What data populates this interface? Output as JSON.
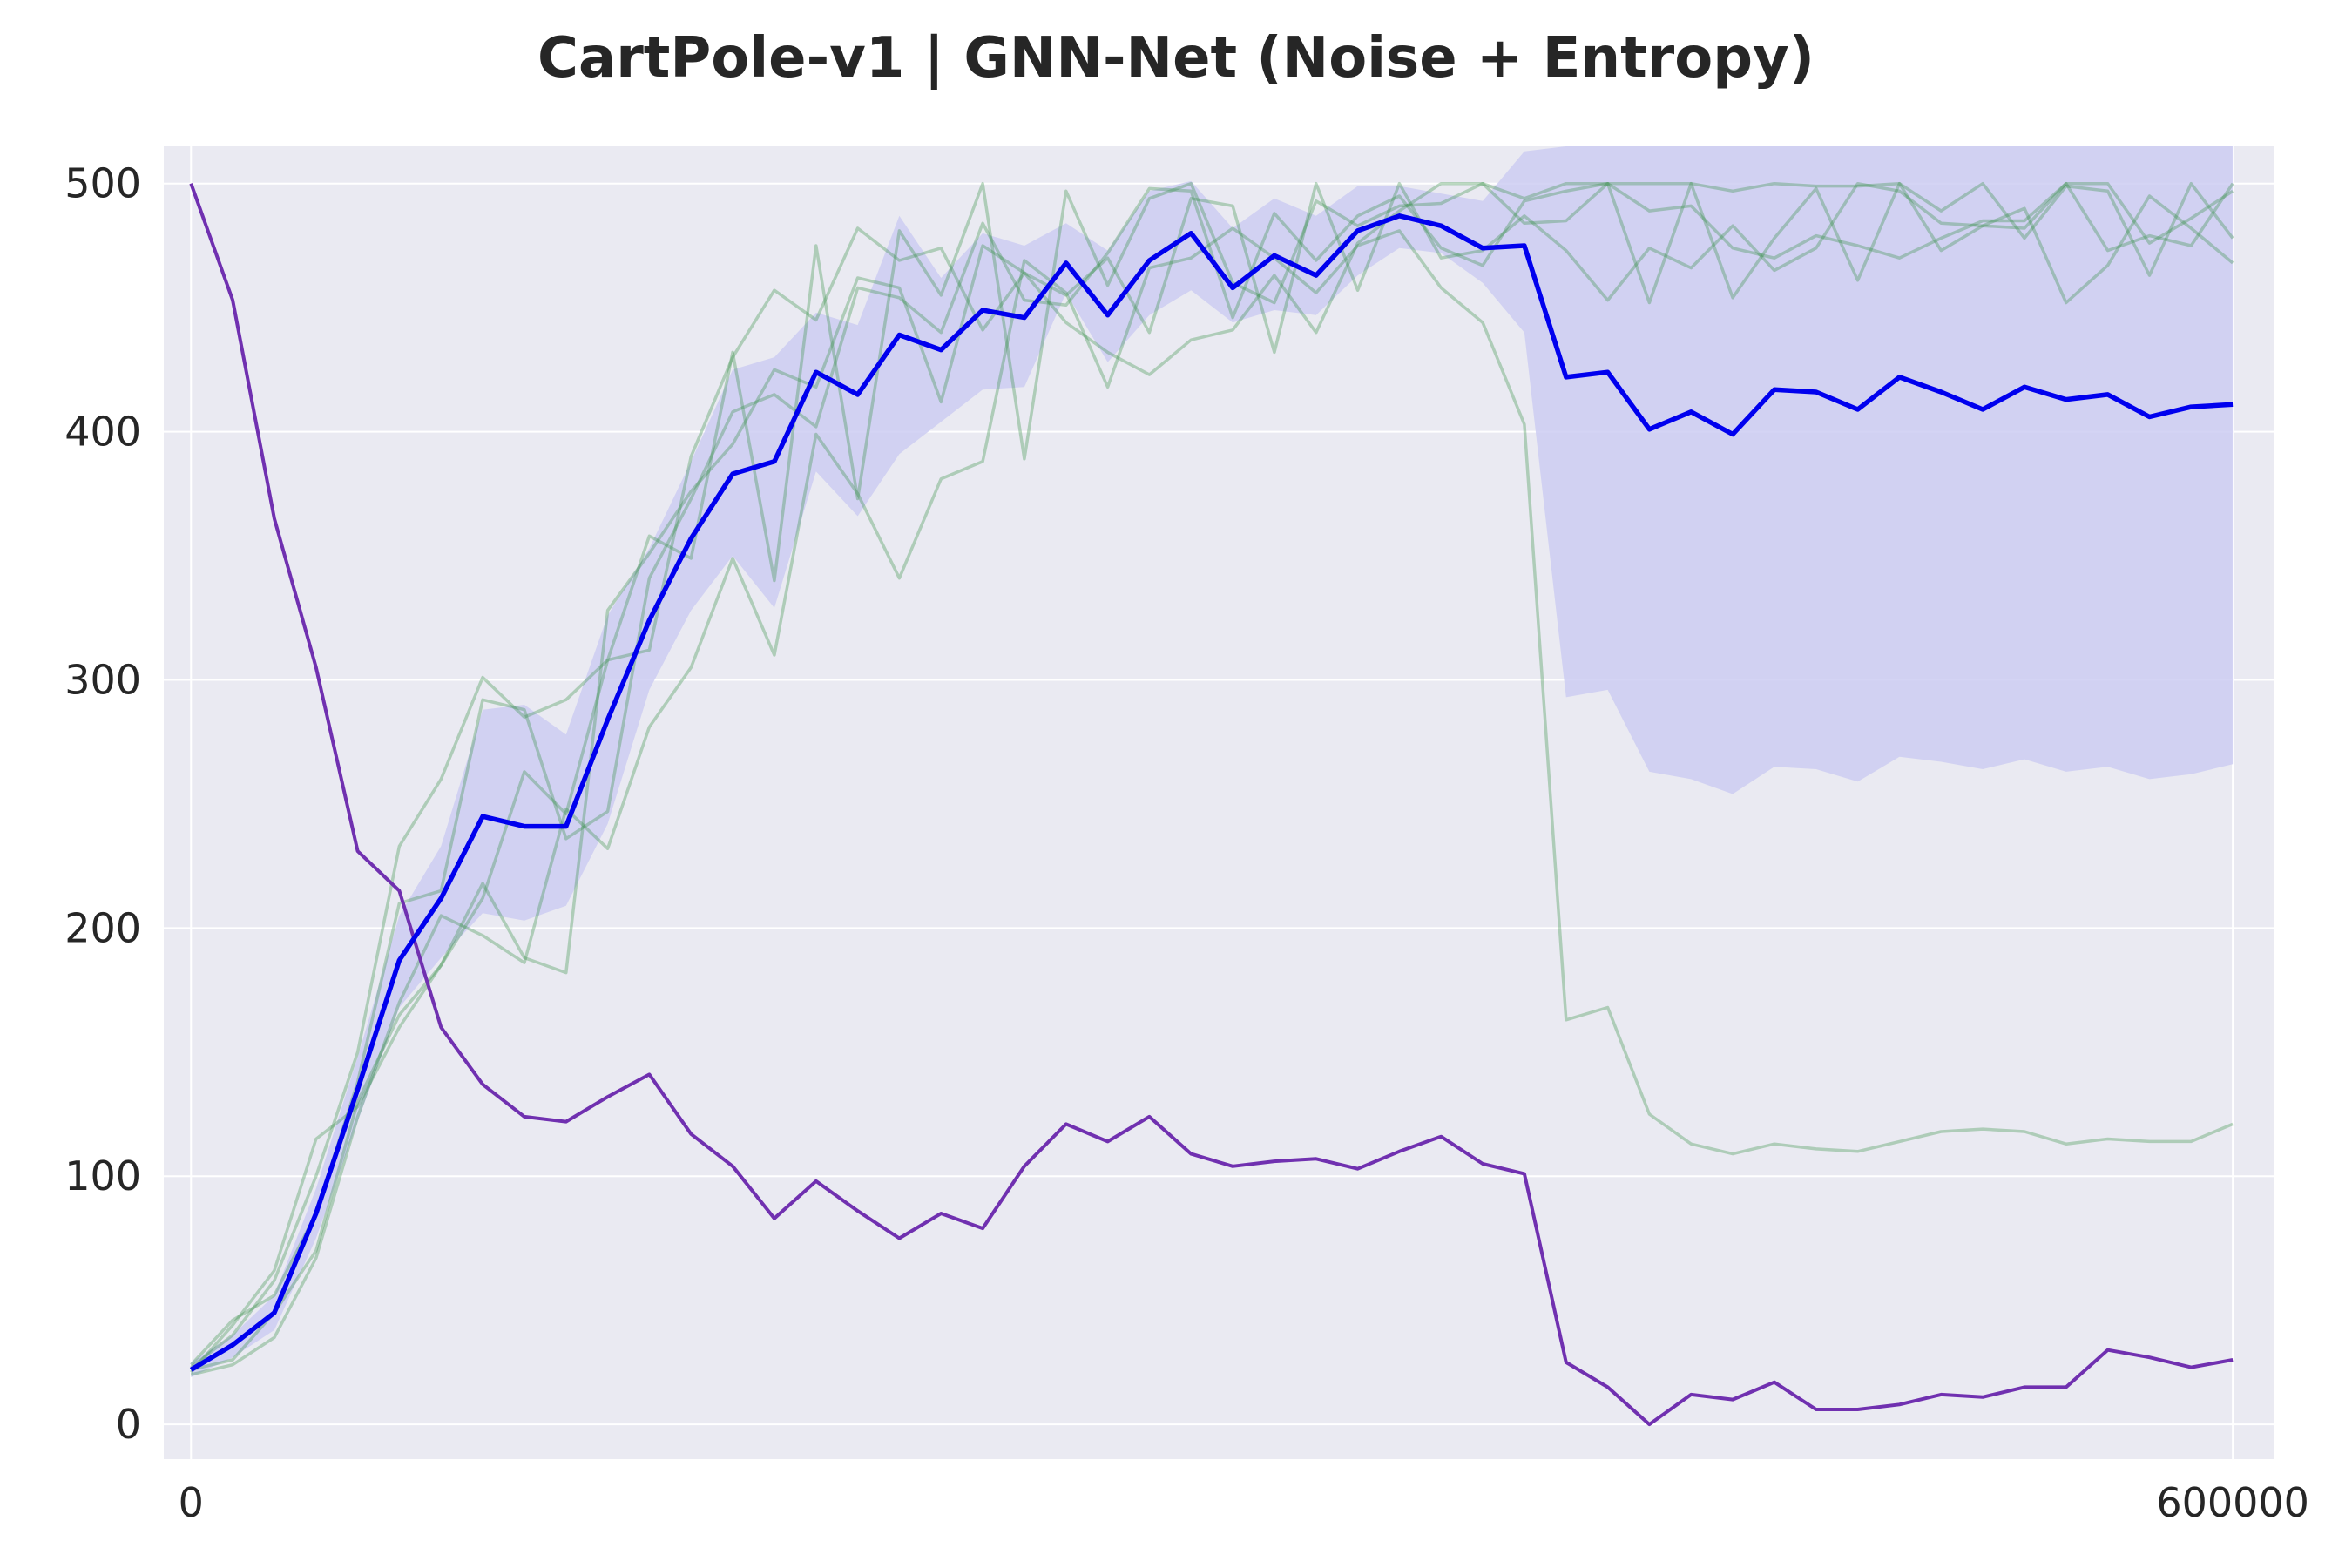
{
  "chart_data": {
    "type": "line",
    "title": "CartPole-v1 | GNN-Net (Noise + Entropy)",
    "xlabel": "",
    "ylabel": "",
    "xlim": [
      -8000,
      612000
    ],
    "ylim": [
      -14,
      515
    ],
    "grid": true,
    "x_ticks": [
      0,
      600000
    ],
    "x_tick_labels": [
      "0",
      "600000"
    ],
    "y_ticks": [
      0,
      100,
      200,
      300,
      400,
      500
    ],
    "y_tick_labels": [
      "0",
      "100",
      "200",
      "300",
      "400",
      "500"
    ],
    "x": [
      0,
      12245,
      24490,
      36735,
      48980,
      61224,
      73469,
      85714,
      97959,
      110204,
      122449,
      134694,
      146939,
      159184,
      171429,
      183673,
      195918,
      208163,
      220408,
      232653,
      244898,
      257143,
      269388,
      281633,
      293878,
      306122,
      318367,
      330612,
      342857,
      355102,
      367347,
      379592,
      391837,
      404082,
      416327,
      428571,
      440816,
      453061,
      465306,
      477551,
      489796,
      502041,
      514286,
      526531,
      538776,
      551020,
      563265,
      575510,
      587755,
      600000
    ],
    "colors": {
      "mean": "#0000ee",
      "band": "#ccccf2",
      "runs": "#2e8b3e",
      "purple": "#7030b0",
      "background": "#eaeaf2",
      "grid": "#ffffff"
    },
    "series": [
      {
        "role": "mean",
        "values": [
          22,
          32,
          45,
          85,
          135,
          187,
          212,
          245,
          241,
          241,
          284,
          324,
          357,
          383,
          388,
          424,
          415,
          439,
          433,
          449,
          446,
          468,
          447,
          469,
          480,
          458,
          471,
          463,
          481,
          487,
          483,
          474,
          475,
          422,
          424,
          401,
          408,
          399,
          417,
          416,
          409,
          422,
          416,
          409,
          418,
          413,
          415,
          406,
          410,
          411
        ]
      },
      {
        "role": "band_upper",
        "values": [
          25,
          36,
          52,
          95,
          148,
          205,
          233,
          288,
          290,
          278,
          326,
          353,
          388,
          425,
          430,
          448,
          443,
          487,
          462,
          480,
          475,
          484,
          473,
          497,
          501,
          482,
          494,
          487,
          499,
          499,
          496,
          493,
          513,
          515,
          515,
          515,
          515,
          515,
          515,
          515,
          515,
          515,
          515,
          515,
          515,
          515,
          515,
          515,
          515,
          515
        ]
      },
      {
        "role": "band_lower",
        "values": [
          19,
          27,
          38,
          75,
          122,
          168,
          188,
          206,
          203,
          209,
          242,
          296,
          328,
          350,
          329,
          384,
          366,
          391,
          404,
          417,
          418,
          456,
          428,
          447,
          457,
          444,
          449,
          447,
          463,
          474,
          472,
          460,
          440,
          293,
          296,
          263,
          260,
          254,
          265,
          264,
          259,
          269,
          267,
          264,
          268,
          263,
          265,
          260,
          262,
          266
        ]
      },
      {
        "role": "run",
        "values": [
          21,
          40,
          62,
          115,
          128,
          160,
          185,
          212,
          263,
          246,
          308,
          358,
          349,
          432,
          340,
          475,
          373,
          481,
          455,
          500,
          389,
          497,
          459,
          494,
          500,
          460,
          452,
          493,
          483,
          491,
          492,
          500,
          494,
          500,
          500,
          452,
          500,
          454,
          478,
          498,
          461,
          500,
          489,
          500,
          478,
          499,
          497,
          463,
          500,
          478
        ]
      },
      {
        "role": "run",
        "values": [
          23,
          36,
          58,
          100,
          150,
          233,
          260,
          301,
          285,
          292,
          308,
          312,
          390,
          430,
          457,
          445,
          482,
          469,
          474,
          441,
          464,
          455,
          470,
          440,
          494,
          491,
          432,
          500,
          457,
          500,
          470,
          473,
          487,
          473,
          453,
          474,
          466,
          483,
          465,
          474,
          500,
          497,
          484,
          483,
          490,
          452,
          467,
          495,
          482,
          468
        ]
      },
      {
        "role": "run",
        "values": [
          20,
          24,
          35,
          67,
          124,
          170,
          205,
          197,
          186,
          248,
          232,
          281,
          305,
          349,
          310,
          399,
          375,
          341,
          381,
          388,
          469,
          456,
          418,
          466,
          470,
          482,
          470,
          456,
          475,
          481,
          458,
          444,
          403,
          163,
          168,
          125,
          113,
          109,
          113,
          111,
          110,
          114,
          118,
          119,
          118,
          113,
          115,
          114,
          114,
          121
        ]
      },
      {
        "role": "run",
        "values": [
          22,
          26,
          45,
          70,
          130,
          165,
          185,
          218,
          188,
          182,
          328,
          351,
          376,
          395,
          425,
          418,
          462,
          458,
          412,
          475,
          464,
          444,
          432,
          423,
          437,
          441,
          463,
          440,
          476,
          489,
          500,
          500,
          484,
          485,
          500,
          500,
          500,
          497,
          500,
          499,
          499,
          500,
          473,
          483,
          482,
          500,
          500,
          476,
          486,
          497
        ]
      },
      {
        "role": "run",
        "values": [
          24,
          42,
          52,
          85,
          138,
          210,
          215,
          292,
          288,
          236,
          247,
          341,
          373,
          408,
          415,
          402,
          458,
          454,
          440,
          484,
          453,
          451,
          472,
          498,
          497,
          446,
          488,
          469,
          487,
          495,
          474,
          467,
          493,
          497,
          500,
          489,
          491,
          474,
          470,
          479,
          475,
          470,
          478,
          485,
          485,
          500,
          473,
          479,
          475,
          500
        ]
      },
      {
        "role": "purple",
        "values": [
          500,
          453,
          365,
          305,
          231,
          215,
          160,
          137,
          124,
          122,
          132,
          141,
          117,
          104,
          83,
          98,
          86,
          75,
          85,
          79,
          104,
          121,
          114,
          124,
          109,
          104,
          106,
          107,
          103,
          110,
          116,
          105,
          101,
          25,
          15,
          0,
          12,
          10,
          17,
          6,
          6,
          8,
          12,
          11,
          15,
          15,
          30,
          27,
          23,
          26
        ]
      }
    ]
  }
}
